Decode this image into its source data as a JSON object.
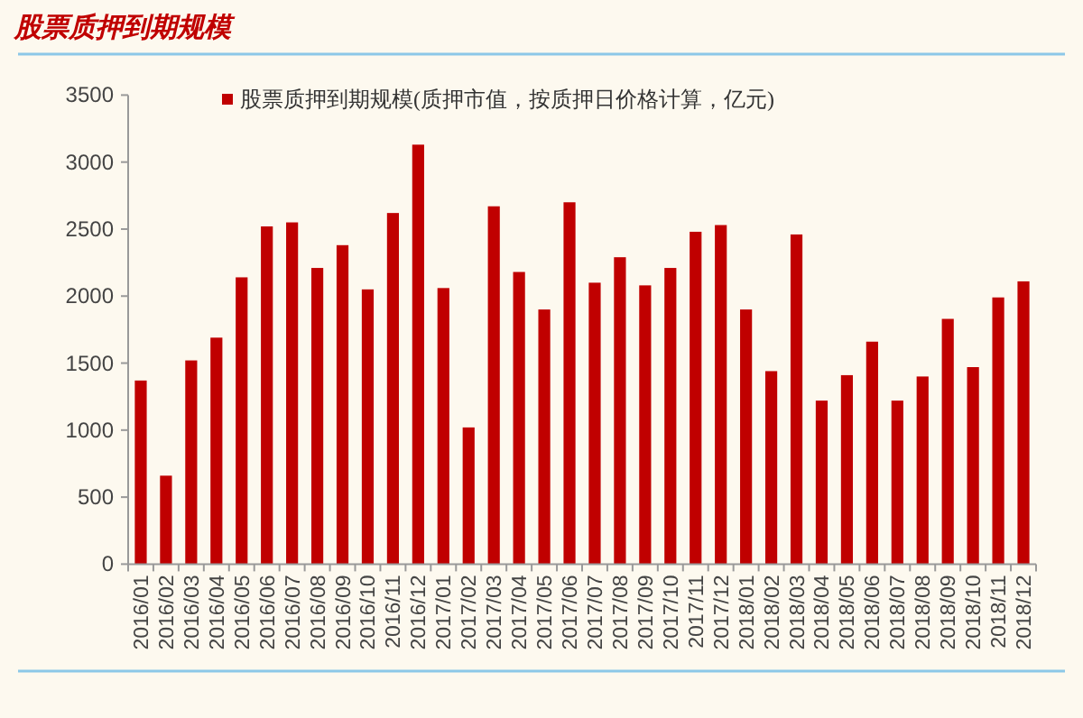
{
  "chart_data": {
    "type": "bar",
    "title": "股票质押到期规模",
    "categories": [
      "2016/01",
      "2016/02",
      "2016/03",
      "2016/04",
      "2016/05",
      "2016/06",
      "2016/07",
      "2016/08",
      "2016/09",
      "2016/10",
      "2016/11",
      "2016/12",
      "2017/01",
      "2017/02",
      "2017/03",
      "2017/04",
      "2017/05",
      "2017/06",
      "2017/07",
      "2017/08",
      "2017/09",
      "2017/10",
      "2017/11",
      "2017/12",
      "2018/01",
      "2018/02",
      "2018/03",
      "2018/04",
      "2018/05",
      "2018/06",
      "2018/07",
      "2018/08",
      "2018/09",
      "2018/10",
      "2018/11",
      "2018/12"
    ],
    "series": [
      {
        "name": "股票质押到期规模(质押市值，按质押日价格计算，亿元)",
        "color": "#c00000",
        "values": [
          1370,
          660,
          1520,
          1690,
          2140,
          2520,
          2550,
          2210,
          2380,
          2050,
          2620,
          3130,
          2060,
          1020,
          2670,
          2180,
          1900,
          2700,
          2100,
          2290,
          2080,
          2210,
          2480,
          2530,
          1900,
          1440,
          2460,
          1220,
          1410,
          1660,
          1220,
          1400,
          1830,
          1470,
          1990,
          2110
        ]
      }
    ],
    "ylim": [
      0,
      3500
    ],
    "yticks": [
      0,
      500,
      1000,
      1500,
      2000,
      2500,
      3000,
      3500
    ],
    "grid": false,
    "legend": "top"
  }
}
